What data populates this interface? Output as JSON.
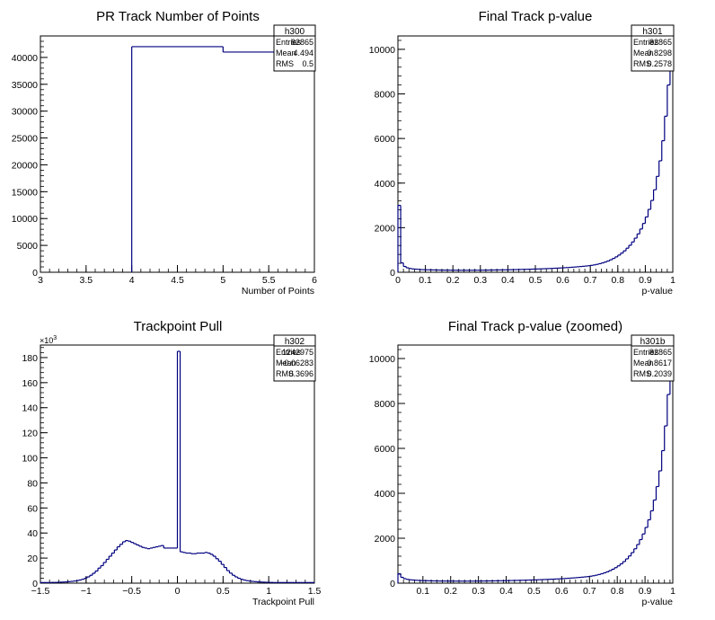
{
  "chart_data": [
    {
      "type": "bar",
      "histogram": "h300",
      "title": "PR Track Number of Points",
      "xlabel": "Number of Points",
      "ylabel": "",
      "xlim": [
        3,
        6
      ],
      "ylim": [
        0,
        44000
      ],
      "xticks": [
        "3",
        "3.5",
        "4",
        "4.5",
        "5",
        "5.5",
        "6"
      ],
      "yticks": [
        "0",
        "5000",
        "10000",
        "15000",
        "20000",
        "25000",
        "30000",
        "35000",
        "40000"
      ],
      "bins": [
        {
          "x0": 4,
          "x1": 5,
          "value": 42000
        },
        {
          "x0": 5,
          "x1": 6,
          "value": 41000
        }
      ],
      "stats": {
        "name": "h300",
        "rows": [
          [
            "Entries",
            "82865"
          ],
          [
            "Mean",
            "4.494"
          ],
          [
            "RMS",
            "0.5"
          ]
        ]
      }
    },
    {
      "type": "bar",
      "histogram": "h301",
      "title": "Final Track p-value",
      "xlabel": "p-value",
      "ylabel": "",
      "xlim": [
        0,
        1
      ],
      "ylim": [
        0,
        10600
      ],
      "xticks": [
        "0",
        "0.1",
        "0.2",
        "0.3",
        "0.4",
        "0.5",
        "0.6",
        "0.7",
        "0.8",
        "0.9",
        "1"
      ],
      "yticks": [
        "0",
        "2000",
        "4000",
        "6000",
        "8000",
        "10000"
      ],
      "bin_width": 0.01,
      "values": [
        3000,
        420,
        260,
        200,
        170,
        150,
        140,
        130,
        120,
        115,
        110,
        108,
        105,
        102,
        100,
        98,
        96,
        95,
        94,
        93,
        92,
        91,
        90,
        90,
        90,
        90,
        90,
        91,
        92,
        93,
        94,
        95,
        97,
        99,
        100,
        102,
        104,
        106,
        108,
        110,
        112,
        115,
        118,
        121,
        124,
        127,
        130,
        134,
        138,
        142,
        146,
        150,
        155,
        160,
        165,
        170,
        176,
        182,
        188,
        195,
        202,
        210,
        218,
        227,
        236,
        246,
        257,
        268,
        280,
        293,
        310,
        330,
        355,
        385,
        420,
        460,
        505,
        560,
        620,
        690,
        770,
        860,
        960,
        1080,
        1210,
        1360,
        1530,
        1720,
        1940,
        2190,
        2480,
        2820,
        3220,
        3700,
        4300,
        5000,
        5900,
        7000,
        8400,
        10200
      ],
      "stats": {
        "name": "h301",
        "rows": [
          [
            "Entries",
            "82865"
          ],
          [
            "Mean",
            "0.8298"
          ],
          [
            "RMS",
            "0.2578"
          ]
        ]
      }
    },
    {
      "type": "bar",
      "histogram": "h302",
      "title": "Trackpoint Pull",
      "xlabel": "Trackpoint Pull",
      "ylabel": "",
      "y_multiplier": "×10",
      "y_multiplier_exp": "3",
      "xlim": [
        -1.5,
        1.5
      ],
      "ylim": [
        0,
        190
      ],
      "xticks": [
        "−1.5",
        "−1",
        "−0.5",
        "0",
        "0.5",
        "1",
        "1.5"
      ],
      "yticks": [
        "0",
        "20",
        "40",
        "60",
        "80",
        "100",
        "120",
        "140",
        "160",
        "180"
      ],
      "bin_width": 0.03,
      "values": [
        0.5,
        0.5,
        0.5,
        0.5,
        0.6,
        0.6,
        0.7,
        0.8,
        0.9,
        1.0,
        1.2,
        1.4,
        1.7,
        2.0,
        2.5,
        3.1,
        3.9,
        5.0,
        6.3,
        7.9,
        9.7,
        12,
        14,
        16.5,
        19,
        21.5,
        24,
        26.5,
        29,
        31,
        33,
        34,
        33.5,
        32.5,
        31.5,
        30.5,
        29.5,
        28.5,
        28,
        27.5,
        28,
        28.5,
        29,
        29.5,
        30,
        28,
        28,
        28,
        28,
        28,
        185,
        25,
        24.5,
        24,
        24,
        23.5,
        23.5,
        24,
        24,
        24,
        24.5,
        24,
        23,
        21.5,
        19.5,
        17.5,
        15,
        12.5,
        10,
        8,
        6.3,
        5.0,
        3.9,
        3.1,
        2.5,
        2.0,
        1.7,
        1.4,
        1.2,
        1.0,
        0.9,
        0.8,
        0.7,
        0.6,
        0.6,
        0.5,
        0.5,
        0.5,
        0.5,
        0.5,
        0.5,
        0.5,
        0.5,
        0.5,
        0.5,
        0.5,
        0.5,
        0.5,
        0.5,
        0.5
      ],
      "stats": {
        "name": "h302",
        "rows": [
          [
            "Entries",
            "1242975"
          ],
          [
            "Mean",
            "−0.06283"
          ],
          [
            "RMS",
            "0.3696"
          ]
        ]
      }
    },
    {
      "type": "bar",
      "histogram": "h301b",
      "title": "Final Track p-value (zoomed)",
      "xlabel": "p-value",
      "ylabel": "",
      "xlim": [
        0.01,
        1
      ],
      "ylim": [
        0,
        10600
      ],
      "xticks": [
        "0.1",
        "0.2",
        "0.3",
        "0.4",
        "0.5",
        "0.6",
        "0.7",
        "0.8",
        "0.9",
        "1"
      ],
      "yticks": [
        "0",
        "2000",
        "4000",
        "6000",
        "8000",
        "10000"
      ],
      "bin_width": 0.01,
      "values": [
        420,
        260,
        200,
        170,
        150,
        140,
        130,
        120,
        115,
        110,
        108,
        105,
        102,
        100,
        98,
        96,
        95,
        94,
        93,
        92,
        91,
        90,
        90,
        90,
        90,
        90,
        91,
        92,
        93,
        94,
        95,
        97,
        99,
        100,
        102,
        104,
        106,
        108,
        110,
        112,
        115,
        118,
        121,
        124,
        127,
        130,
        134,
        138,
        142,
        146,
        150,
        155,
        160,
        165,
        170,
        176,
        182,
        188,
        195,
        202,
        210,
        218,
        227,
        236,
        246,
        257,
        268,
        280,
        293,
        310,
        330,
        355,
        385,
        420,
        460,
        505,
        560,
        620,
        690,
        770,
        860,
        960,
        1080,
        1210,
        1360,
        1530,
        1720,
        1940,
        2190,
        2480,
        2820,
        3220,
        3700,
        4300,
        5000,
        5900,
        7000,
        8400,
        10200
      ],
      "stats": {
        "name": "h301b",
        "rows": [
          [
            "Entries",
            "82865"
          ],
          [
            "Mean",
            "0.8617"
          ],
          [
            "RMS",
            "0.2039"
          ]
        ]
      }
    }
  ],
  "colors": {
    "line": "#00007f",
    "axis": "#000000",
    "background": "#ffffff"
  }
}
